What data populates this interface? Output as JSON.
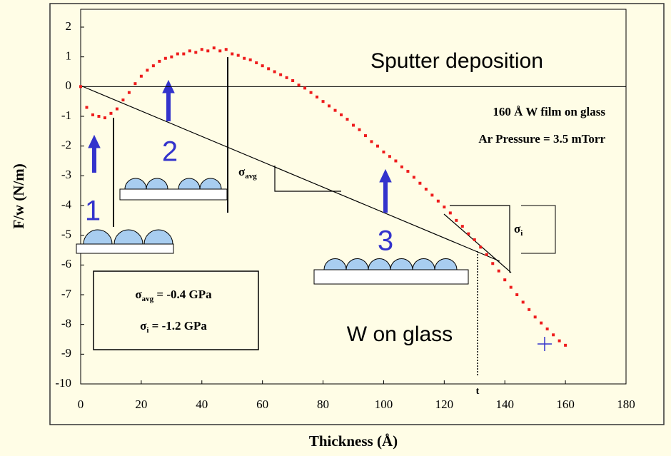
{
  "chart_data": {
    "type": "scatter",
    "x_label": "Thickness (Å)",
    "y_label": "F/w (N/m)",
    "x": [
      0,
      2,
      4,
      6,
      8,
      10,
      12,
      14,
      16,
      18,
      20,
      22,
      24,
      26,
      28,
      30,
      32,
      34,
      36,
      38,
      40,
      42,
      44,
      46,
      48,
      50,
      52,
      54,
      56,
      58,
      60,
      62,
      64,
      66,
      68,
      70,
      72,
      74,
      76,
      78,
      80,
      82,
      84,
      86,
      88,
      90,
      92,
      94,
      96,
      98,
      100,
      102,
      104,
      106,
      108,
      110,
      112,
      114,
      116,
      118,
      120,
      122,
      124,
      126,
      128,
      130,
      132,
      134,
      136,
      138,
      140,
      142,
      144,
      146,
      148,
      150,
      152,
      154,
      156,
      158,
      160
    ],
    "values": [
      0.0,
      -0.7,
      -0.95,
      -1.0,
      -1.05,
      -0.9,
      -0.75,
      -0.45,
      -0.2,
      0.1,
      0.35,
      0.55,
      0.7,
      0.85,
      0.95,
      1.0,
      1.1,
      1.1,
      1.2,
      1.15,
      1.25,
      1.2,
      1.3,
      1.2,
      1.25,
      1.1,
      1.05,
      0.95,
      0.9,
      0.8,
      0.7,
      0.6,
      0.5,
      0.4,
      0.3,
      0.2,
      0.05,
      -0.05,
      -0.2,
      -0.35,
      -0.5,
      -0.65,
      -0.8,
      -0.95,
      -1.1,
      -1.3,
      -1.45,
      -1.65,
      -1.85,
      -2.0,
      -2.2,
      -2.35,
      -2.5,
      -2.7,
      -2.85,
      -3.05,
      -3.25,
      -3.45,
      -3.65,
      -3.85,
      -4.05,
      -4.25,
      -4.5,
      -4.7,
      -4.95,
      -5.15,
      -5.4,
      -5.65,
      -5.95,
      -6.2,
      -6.5,
      -6.75,
      -7.0,
      -7.25,
      -7.5,
      -7.75,
      -7.95,
      -8.15,
      -8.35,
      -8.55,
      -8.7
    ],
    "color": "#ee1c1c",
    "xlim": [
      0,
      180
    ],
    "xticks": [
      0,
      20,
      40,
      60,
      80,
      100,
      120,
      140,
      160,
      180
    ],
    "ylim": [
      -10,
      2.6
    ],
    "yticks": [
      -10,
      -9,
      -8,
      -7,
      -6,
      -5,
      -4,
      -3,
      -2,
      -1,
      0,
      1,
      2
    ],
    "annotations": {
      "process": "Sputter deposition",
      "film": "160 Å W film on glass",
      "pressure": "Ar Pressure = 3.5 mTorr",
      "material": "W on glass",
      "stage_1": "1",
      "stage_2": "2",
      "stage_3": "3",
      "t": "t",
      "sigma_avg": {
        "symbol": "σ",
        "subscript": "avg"
      },
      "sigma_i": {
        "symbol": "σ",
        "subscript": "i"
      },
      "box": [
        {
          "symbol": "σ",
          "subscript": "avg",
          "text": " = -0.4 GPa"
        },
        {
          "symbol": "σ",
          "subscript": "i",
          "text": " = -1.2 GPa"
        }
      ]
    }
  }
}
